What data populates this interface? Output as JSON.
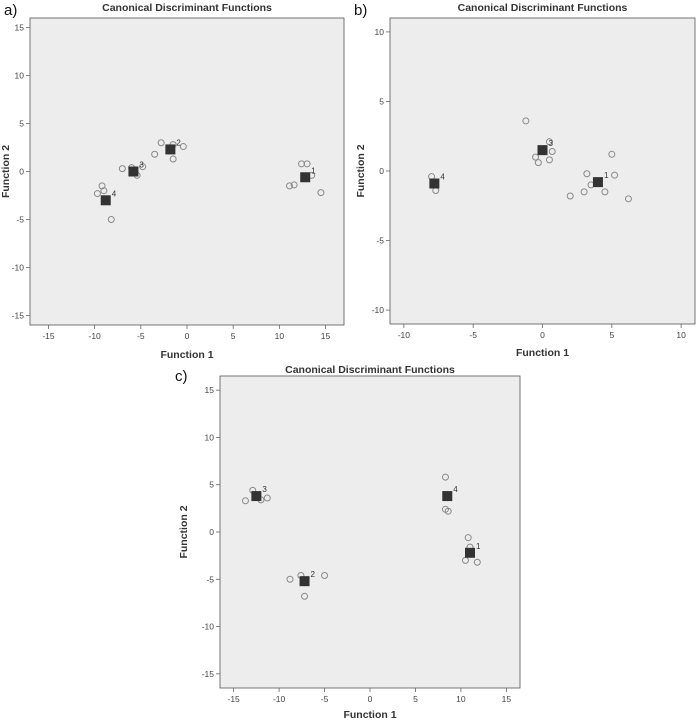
{
  "chart_data": [
    {
      "panel": "a)",
      "type": "scatter",
      "title": "Canonical Discriminant Functions",
      "xlabel": "Function 1",
      "ylabel": "Function 2",
      "xlim": [
        -17,
        17
      ],
      "ylim": [
        -16,
        16
      ],
      "xticks": [
        -15,
        -10,
        -5,
        0,
        5,
        10,
        15
      ],
      "yticks": [
        -15,
        -10,
        -5,
        0,
        5,
        10,
        15
      ],
      "series": [
        {
          "group": "1",
          "centroid": [
            12.8,
            -0.6
          ],
          "points": [
            [
              12.4,
              0.8
            ],
            [
              13.0,
              0.8
            ],
            [
              11.6,
              -1.4
            ],
            [
              11.1,
              -1.5
            ],
            [
              13.5,
              -0.4
            ],
            [
              14.5,
              -2.2
            ]
          ]
        },
        {
          "group": "2",
          "centroid": [
            -1.8,
            2.3
          ],
          "points": [
            [
              -1.5,
              2.8
            ],
            [
              -0.4,
              2.6
            ],
            [
              -2.8,
              3.0
            ],
            [
              -3.5,
              1.8
            ],
            [
              -1.5,
              1.3
            ]
          ]
        },
        {
          "group": "3",
          "centroid": [
            -5.8,
            0.0
          ],
          "points": [
            [
              -6.0,
              0.4
            ],
            [
              -5.4,
              -0.4
            ],
            [
              -7.0,
              0.3
            ],
            [
              -4.8,
              0.5
            ]
          ]
        },
        {
          "group": "4",
          "centroid": [
            -8.8,
            -3.0
          ],
          "points": [
            [
              -9.2,
              -1.5
            ],
            [
              -9.0,
              -2.0
            ],
            [
              -9.7,
              -2.3
            ],
            [
              -8.2,
              -5.0
            ]
          ]
        }
      ]
    },
    {
      "panel": "b)",
      "type": "scatter",
      "title": "Canonical Discriminant Functions",
      "xlabel": "Function 1",
      "ylabel": "Function 2",
      "xlim": [
        -11,
        11
      ],
      "ylim": [
        -11,
        11
      ],
      "xticks": [
        -10,
        -5,
        0,
        5,
        10
      ],
      "yticks": [
        -10,
        -5,
        0,
        5,
        10
      ],
      "series": [
        {
          "group": "1",
          "centroid": [
            4.0,
            -0.8
          ],
          "points": [
            [
              3.2,
              -0.2
            ],
            [
              5.0,
              1.2
            ],
            [
              5.2,
              -0.3
            ],
            [
              3.5,
              -1.0
            ],
            [
              4.5,
              -1.5
            ],
            [
              2.0,
              -1.8
            ],
            [
              3.0,
              -1.5
            ],
            [
              6.2,
              -2.0
            ]
          ]
        },
        {
          "group": "3",
          "centroid": [
            0.0,
            1.5
          ],
          "points": [
            [
              -1.2,
              3.6
            ],
            [
              0.5,
              2.1
            ],
            [
              0.7,
              1.4
            ],
            [
              0.5,
              0.8
            ],
            [
              -0.3,
              0.6
            ],
            [
              -0.5,
              1.0
            ]
          ]
        },
        {
          "group": "4",
          "centroid": [
            -7.8,
            -0.9
          ],
          "points": [
            [
              -8.0,
              -0.4
            ],
            [
              -7.7,
              -1.4
            ]
          ]
        }
      ]
    },
    {
      "panel": "c)",
      "type": "scatter",
      "title": "Canonical Discriminant Functions",
      "xlabel": "Function 1",
      "ylabel": "Function 2",
      "xlim": [
        -16.5,
        16.5
      ],
      "ylim": [
        -16.5,
        16.5
      ],
      "xticks": [
        -15,
        -10,
        -5,
        0,
        5,
        10,
        15
      ],
      "yticks": [
        -15,
        -10,
        -5,
        0,
        5,
        10,
        15
      ],
      "series": [
        {
          "group": "1",
          "centroid": [
            11.0,
            -2.2
          ],
          "points": [
            [
              10.8,
              -0.6
            ],
            [
              10.5,
              -3.0
            ],
            [
              11.8,
              -3.2
            ],
            [
              11.0,
              -1.6
            ]
          ]
        },
        {
          "group": "2",
          "centroid": [
            -7.2,
            -5.2
          ],
          "points": [
            [
              -8.8,
              -5.0
            ],
            [
              -7.6,
              -4.6
            ],
            [
              -5.0,
              -4.6
            ],
            [
              -7.2,
              -6.8
            ]
          ]
        },
        {
          "group": "3",
          "centroid": [
            -12.5,
            3.8
          ],
          "points": [
            [
              -13.7,
              3.3
            ],
            [
              -11.3,
              3.6
            ],
            [
              -12.9,
              4.4
            ],
            [
              -12.0,
              3.4
            ]
          ]
        },
        {
          "group": "4",
          "centroid": [
            8.5,
            3.8
          ],
          "points": [
            [
              8.3,
              5.8
            ],
            [
              8.6,
              2.2
            ],
            [
              8.3,
              2.4
            ]
          ]
        }
      ]
    }
  ]
}
